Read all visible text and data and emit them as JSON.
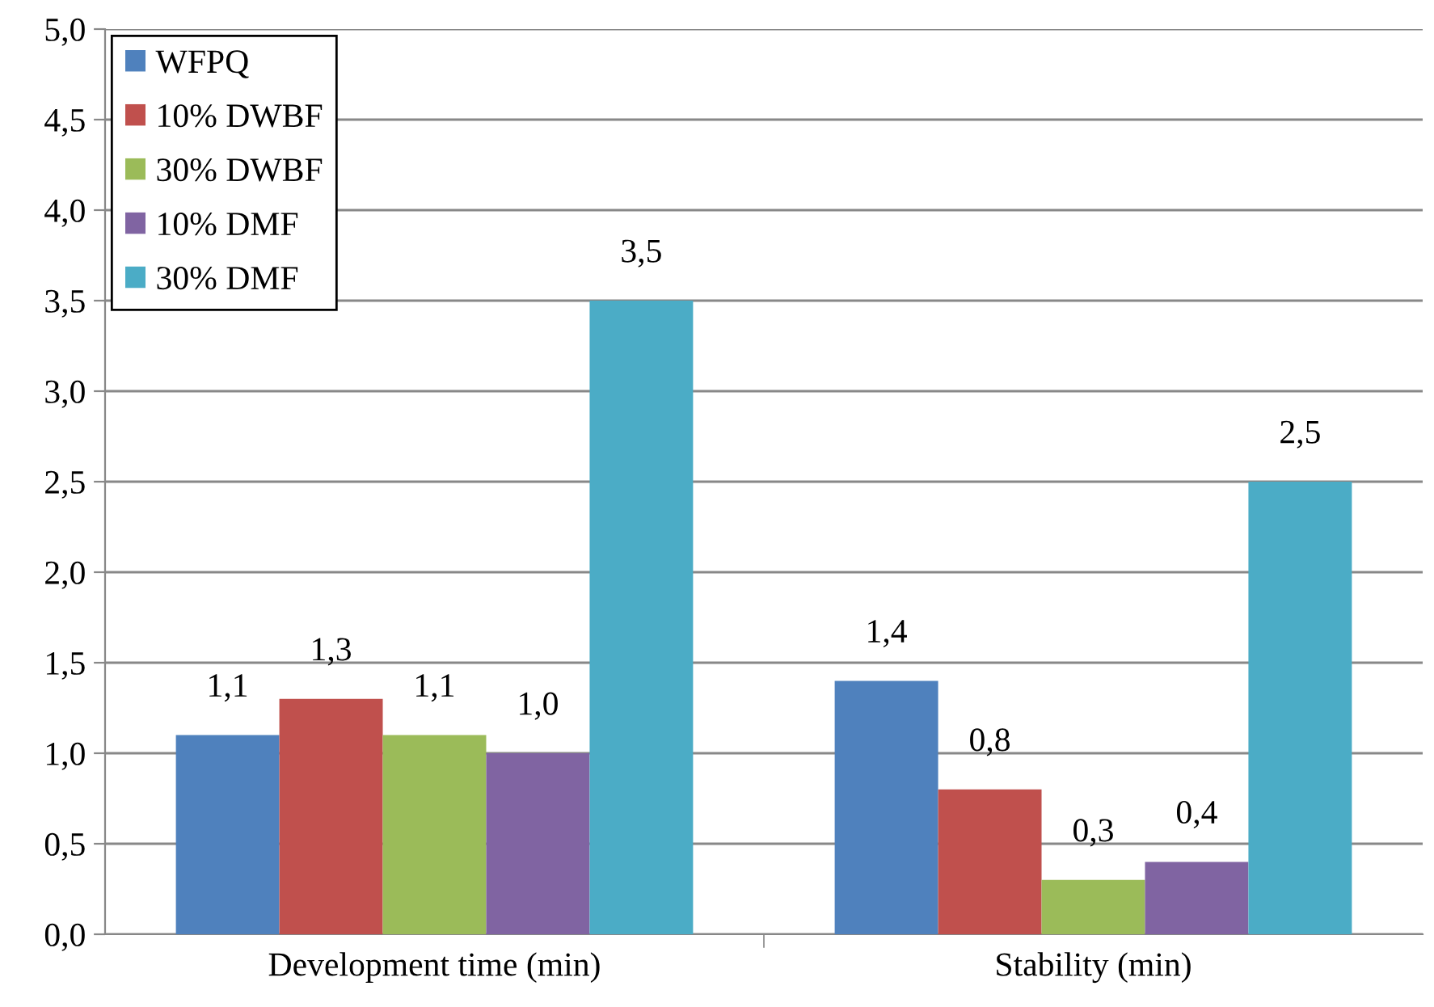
{
  "chart_data": {
    "type": "bar",
    "categories": [
      "Development time (min)",
      "Stability (min)"
    ],
    "series": [
      {
        "name": "WFPQ",
        "color": "#4f81bd",
        "values": [
          1.1,
          1.4
        ],
        "value_labels": [
          "1,1",
          "1,4"
        ]
      },
      {
        "name": "10% DWBF",
        "color": "#c0504d",
        "values": [
          1.3,
          0.8
        ],
        "value_labels": [
          "1,3",
          "0,8"
        ]
      },
      {
        "name": "30% DWBF",
        "color": "#9bbb59",
        "values": [
          1.1,
          0.3
        ],
        "value_labels": [
          "1,1",
          "0,3"
        ]
      },
      {
        "name": "10% DMF",
        "color": "#8064a2",
        "values": [
          1.0,
          0.4
        ],
        "value_labels": [
          "1,0",
          "0,4"
        ]
      },
      {
        "name": "30% DMF",
        "color": "#4bacc6",
        "values": [
          3.5,
          2.5
        ],
        "value_labels": [
          "3,5",
          "2,5"
        ]
      }
    ],
    "ylim": [
      0,
      5
    ],
    "yticks": [
      {
        "value": 0,
        "label": "0,0"
      },
      {
        "value": 0.5,
        "label": "0,5"
      },
      {
        "value": 1,
        "label": "1,0"
      },
      {
        "value": 1.5,
        "label": "1,5"
      },
      {
        "value": 2,
        "label": "2,0"
      },
      {
        "value": 2.5,
        "label": "2,5"
      },
      {
        "value": 3,
        "label": "3,0"
      },
      {
        "value": 3.5,
        "label": "3,5"
      },
      {
        "value": 4,
        "label": "4,0"
      },
      {
        "value": 4.5,
        "label": "4,5"
      },
      {
        "value": 5,
        "label": "5,0"
      }
    ],
    "grid": "y",
    "legend": "top left"
  }
}
